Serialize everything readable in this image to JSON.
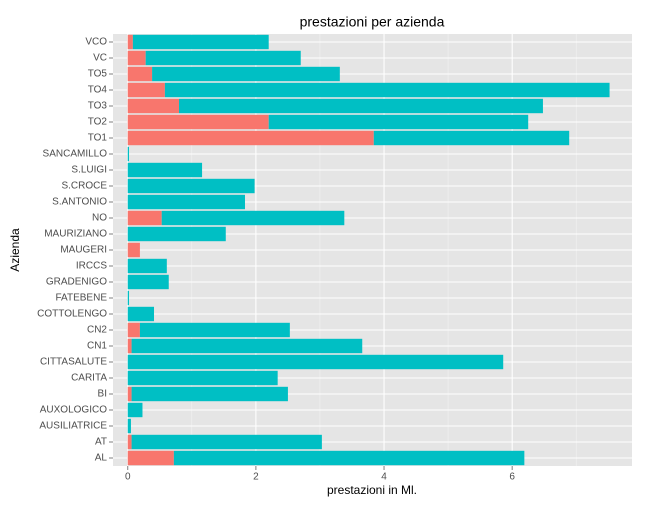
{
  "chart_data": {
    "type": "stacked-barh",
    "title": "prestazioni per azienda",
    "x_label": "prestazioni in Ml.",
    "y_label": "Azienda",
    "categories": [
      "AL",
      "AT",
      "AUSILIATRICE",
      "AUXOLOGICO",
      "BI",
      "CARITA",
      "CITTASALUTE",
      "CN1",
      "CN2",
      "COTTOLENGO",
      "FATEBENE",
      "GRADENIGO",
      "IRCCS",
      "MAUGERI",
      "MAURIZIANO",
      "NO",
      "S.ANTONIO",
      "S.CROCE",
      "S.LUIGI",
      "SANCAMILLO",
      "TO1",
      "TO2",
      "TO3",
      "TO4",
      "TO5",
      "VC",
      "VCO"
    ],
    "series": [
      {
        "color": "#F8766D",
        "values": [
          0.72,
          0.06,
          0,
          0,
          0.06,
          0,
          0,
          0.06,
          0.19,
          0,
          0,
          0,
          0,
          0.19,
          0,
          0.53,
          0,
          0,
          0,
          0,
          3.84,
          2.2,
          0.8,
          0.58,
          0.38,
          0.28,
          0.08
        ]
      },
      {
        "color": "#00BFC4",
        "values": [
          5.47,
          2.97,
          0.05,
          0.23,
          2.44,
          2.34,
          5.86,
          3.6,
          2.34,
          0.41,
          0.02,
          0.64,
          0.61,
          0,
          1.53,
          2.85,
          1.83,
          1.98,
          1.16,
          0.02,
          3.05,
          4.05,
          5.68,
          6.94,
          2.93,
          2.42,
          2.12
        ]
      }
    ],
    "xlim": [
      -0.23,
      7.87
    ],
    "xticks": [
      0,
      2,
      4,
      6
    ],
    "xminorticks": [
      1,
      3,
      5,
      7
    ],
    "grid": true
  }
}
